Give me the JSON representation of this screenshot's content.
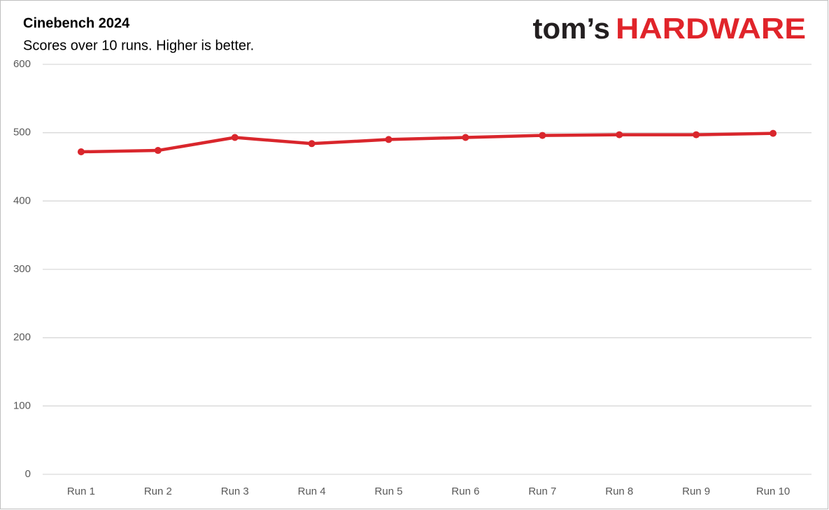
{
  "chart_data": {
    "type": "line",
    "title": "Cinebench 2024",
    "subtitle": "Scores over 10 runs. Higher is better.",
    "branding": {
      "prefix": "tom’s",
      "name": "HARDWARE"
    },
    "categories": [
      "Run 1",
      "Run 2",
      "Run 3",
      "Run 4",
      "Run 5",
      "Run 6",
      "Run 7",
      "Run 8",
      "Run 9",
      "Run 10"
    ],
    "series": [
      {
        "name": "Cinebench 2024",
        "color": "#d9262c",
        "values": [
          472,
          474,
          493,
          484,
          490,
          493,
          496,
          497,
          497,
          499
        ]
      }
    ],
    "ylim": [
      0,
      600
    ],
    "yticks": [
      0,
      100,
      200,
      300,
      400,
      500,
      600
    ],
    "grid": true,
    "legend": false
  }
}
